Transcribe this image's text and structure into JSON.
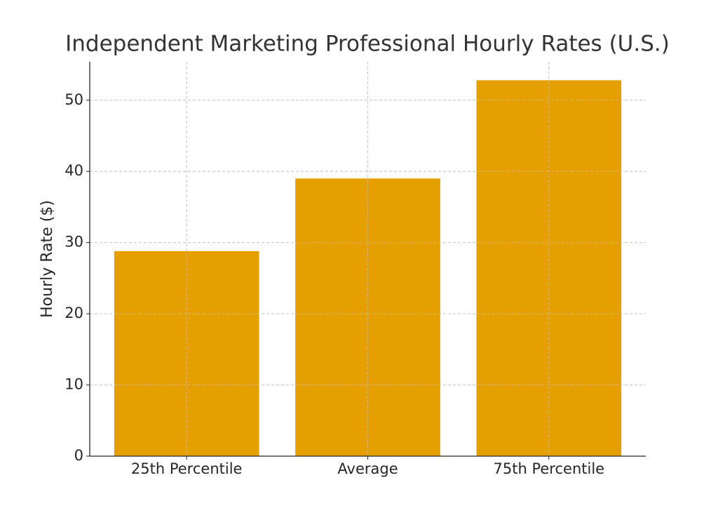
{
  "chart_data": {
    "type": "bar",
    "title": "Independent Marketing Professional Hourly Rates (U.S.)",
    "y_label": "Hourly Rate ($)",
    "categories": [
      "25th Percentile",
      "Average",
      "75th Percentile"
    ],
    "values": [
      28.8,
      39,
      52.8
    ],
    "color": "#e69f00",
    "ylim": [
      0,
      55.4
    ],
    "yticks": [
      0,
      10,
      20,
      30,
      40,
      50
    ],
    "grid": true
  }
}
